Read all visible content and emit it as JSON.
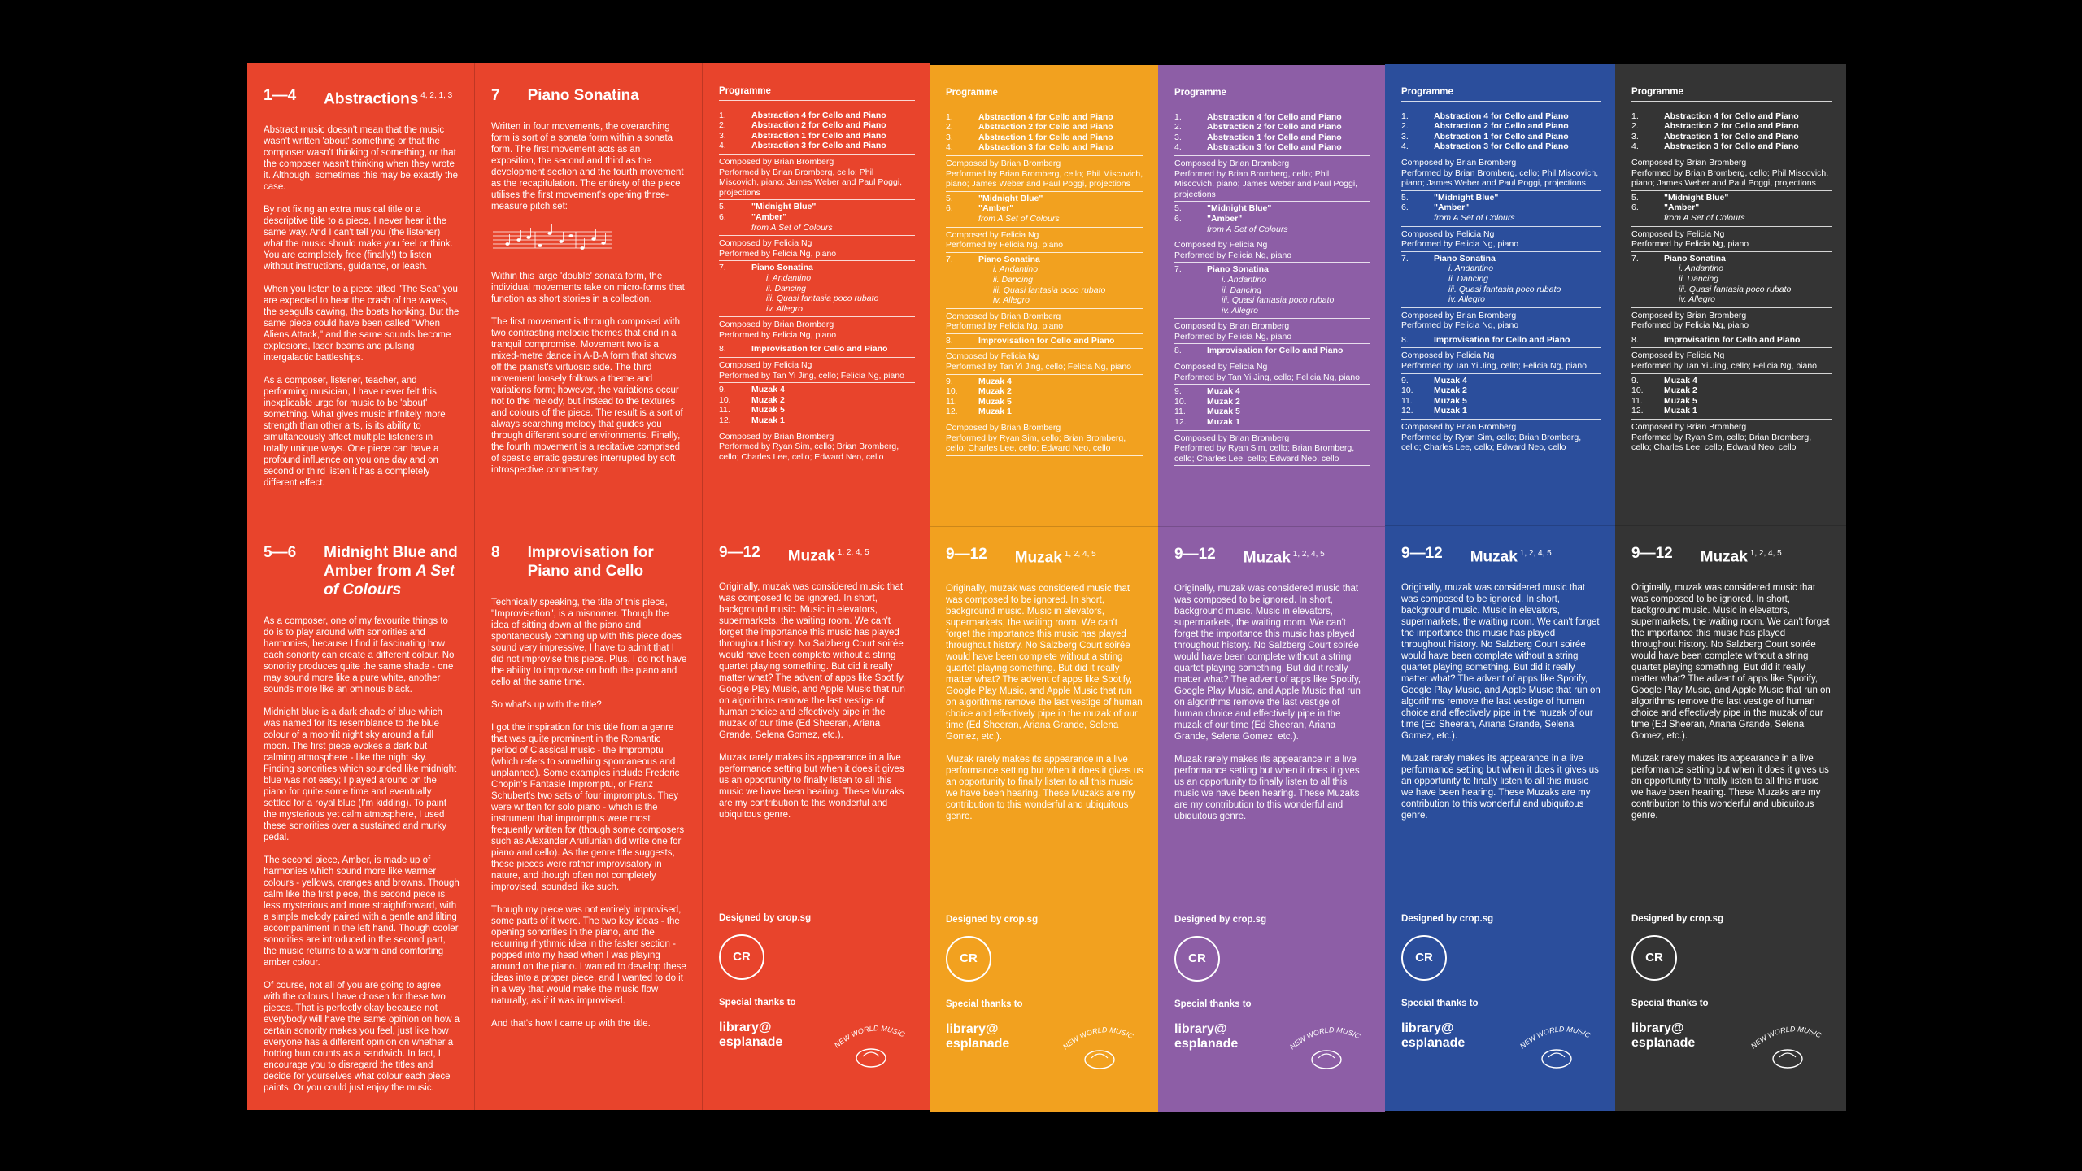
{
  "panels": [
    {
      "number": "1—4",
      "title": "Abstractions",
      "superscript": "4, 2, 1, 3",
      "paragraphs": [
        "Abstract music doesn't mean that the music wasn't written 'about' something or that the composer wasn't thinking of something, or that the composer wasn't thinking when they wrote it. Although, sometimes this may be exactly the case.",
        "By not fixing an extra musical title or a descriptive title to a piece, I never hear it the same way. And I can't tell you (the listener) what the music should make you feel or think. You are completely free (finally!) to listen without instructions, guidance, or leash.",
        "When you listen to a piece titled \"The Sea\" you are expected to hear the crash of the waves, the seagulls cawing, the boats honking. But the same piece could have been called \"When Aliens Attack,\" and the same sounds become explosions, laser beams and pulsing intergalactic battleships.",
        "As a composer, listener, teacher, and performing musician, I have never felt this inexplicable urge for music to be 'about' something. What gives music infinitely more strength than other arts, is its ability to simultaneously affect multiple listeners in totally unique ways. One piece can have a profound influence on you one day and on second or third listen it has a completely different effect."
      ]
    },
    {
      "number": "7",
      "title": "Piano Sonatina",
      "paragraphs": [
        "Written in four movements, the overarching form is sort of a sonata form within a sonata form. The first movement acts as an exposition, the second and third as the development section and the fourth movement as the recapitulation. The entirety of the piece utilises the first movement's opening three-measure pitch set:",
        "Within this large 'double' sonata form, the individual movements take on micro-forms that function as short stories in a collection.",
        "The first movement is through composed with two contrasting melodic themes that end in a tranquil compromise. Movement two is a mixed-metre dance in A-B-A form that shows off the pianist's virtuosic side. The third movement loosely follows a theme and variations form; however, the variations occur not to the melody, but instead to the textures and colours of the piece. The result is a sort of always searching melody that guides you through different sound environments. Finally, the fourth movement is a recitative comprised of spastic erratic gestures interrupted by soft introspective commentary."
      ]
    },
    {
      "number": "5—6",
      "title": "Midnight Blue and Amber from",
      "title_em": "A Set of Colours",
      "paragraphs": [
        "As a composer, one of my favourite things to do is to play around with sonorities and harmonies, because I find it fascinating how each sonority can create a different colour. No sonority produces quite the same shade - one may sound more like a pure white, another sounds more like an ominous black.",
        "Midnight blue is a dark shade of blue which was named for its resemblance to the blue colour of a moonlit night sky around a full moon. The first piece evokes a dark but calming atmosphere - like the night sky. Finding sonorities which sounded like midnight blue was not easy; I played around on the piano for quite some time and eventually settled for a royal blue (I'm kidding). To paint the mysterious yet calm atmosphere, I used these sonorities over a sustained and murky pedal.",
        "The second piece, Amber, is made up of harmonies which sound more like warmer colours - yellows, oranges and browns. Though calm like the first piece, this second piece is less mysterious and more straightforward, with a simple melody paired with a gentle and lilting accompaniment in the left hand. Though cooler sonorities are introduced in the second part, the music returns to a warm and comforting amber colour.",
        "Of course, not all of you are going to agree with the colours I have chosen for these two pieces. That is perfectly okay because not everybody will have the same opinion on how a certain sonority makes you feel, just like how everyone has a different opinion on whether a hotdog bun counts as a sandwich. In fact, I encourage you to disregard the titles and decide for yourselves what colour each piece paints. Or you could just enjoy the music."
      ]
    },
    {
      "number": "8",
      "title": "Improvisation for Piano and Cello",
      "paragraphs": [
        "Technically speaking, the title of this piece, \"Improvisation\", is a misnomer. Though the idea of sitting down at the piano and spontaneously coming up with this piece does sound very impressive, I have to admit that I did not improvise this piece. Plus, I do not have the ability to improvise on both the piano and cello at the same time.",
        "So what's up with the title?",
        "I got the inspiration for this title from a genre that was quite prominent in the Romantic period of Classical music - the Impromptu (which refers to something spontaneous and unplanned). Some examples include Frederic Chopin's Fantasie Impromptu, or Franz Schubert's two sets of four impromptus. They were written for solo piano - which is the instrument that impromptus were most frequently written for (though some composers such as Alexander Arutiunian did write one for piano and cello). As the genre title suggests, these pieces were rather improvisatory in nature, and though often not completely improvised, sounded like such.",
        "Though my piece was not entirely improvised, some parts of it were. The two key ideas - the opening sonorities in the piano, and the recurring rhythmic idea in the faster section - popped into my head when I was playing around on the piano. I wanted to develop these ideas into a proper piece, and I wanted to do it in a way that would make the music flow naturally, as if it was improvised.",
        "And that's how I came up with the title."
      ]
    }
  ],
  "programme": {
    "heading": "Programme",
    "groups": [
      {
        "items": [
          {
            "number": "1.",
            "title": "Abstraction 4 for Cello and Piano"
          },
          {
            "number": "2.",
            "title": "Abstraction 2 for Cello and Piano"
          },
          {
            "number": "3.",
            "title": "Abstraction 1 for Cello and Piano"
          },
          {
            "number": "4.",
            "title": "Abstraction 3 for Cello and Piano"
          }
        ],
        "composed": "Composed by Brian Bromberg",
        "performed": "Performed by Brian Bromberg, cello; Phil Miscovich, piano; James Weber and Paul Poggi, projections"
      },
      {
        "items": [
          {
            "number": "5.",
            "title": "\"Midnight Blue\""
          },
          {
            "number": "6.",
            "title": "\"Amber\"",
            "sub": "from A Set of Colours"
          }
        ],
        "composed": "Composed by Felicia Ng",
        "performed": "Performed by Felicia Ng, piano"
      },
      {
        "items": [
          {
            "number": "7.",
            "title": "Piano Sonatina",
            "movements": [
              "i. Andantino",
              "ii. Dancing",
              "iii. Quasi fantasia poco rubato",
              "iv. Allegro"
            ]
          }
        ],
        "composed": "Composed by Brian Bromberg",
        "performed": "Performed by Felicia Ng, piano"
      },
      {
        "items": [
          {
            "number": "8.",
            "title": "Improvisation for Cello and Piano"
          }
        ],
        "composed": "Composed by Felicia Ng",
        "performed": "Performed by Tan Yi Jing, cello; Felicia Ng, piano"
      },
      {
        "items": [
          {
            "number": "9.",
            "title": "Muzak 4"
          },
          {
            "number": "10.",
            "title": "Muzak 2"
          },
          {
            "number": "11.",
            "title": "Muzak 5"
          },
          {
            "number": "12.",
            "title": "Muzak 1"
          }
        ],
        "composed": "Composed by Brian Bromberg",
        "performed": "Performed by Ryan Sim, cello; Brian Bromberg, cello; Charles Lee, cello; Edward Neo, cello"
      }
    ]
  },
  "muzak": {
    "number": "9—12",
    "title": "Muzak",
    "superscript": "1, 2, 4, 5",
    "paragraphs": [
      "Originally, muzak was considered music that was composed to be ignored. In short, background music. Music in elevators, supermarkets, the waiting room. We can't forget the importance this music has played throughout history. No Salzberg Court soirée would have been complete without a string quartet playing something. But did it really matter what? The advent of apps like Spotify, Google Play Music, and Apple Music that run on algorithms remove the last vestige of human choice and effectively pipe in the muzak of our time (Ed Sheeran, Ariana Grande, Selena Gomez, etc.).",
      "Muzak rarely makes its appearance in a live performance setting but when it does it gives us an opportunity to finally listen to all this music we have been hearing. These Muzaks are my contribution to this wonderful and ubiquitous genre."
    ]
  },
  "footer": {
    "designed": "Designed by crop.sg",
    "crop_logo": "CR",
    "thanks": "Special thanks to",
    "library": [
      "library@",
      "esplanade"
    ],
    "nwm_logo": "NEW WORLD MUSIC"
  }
}
